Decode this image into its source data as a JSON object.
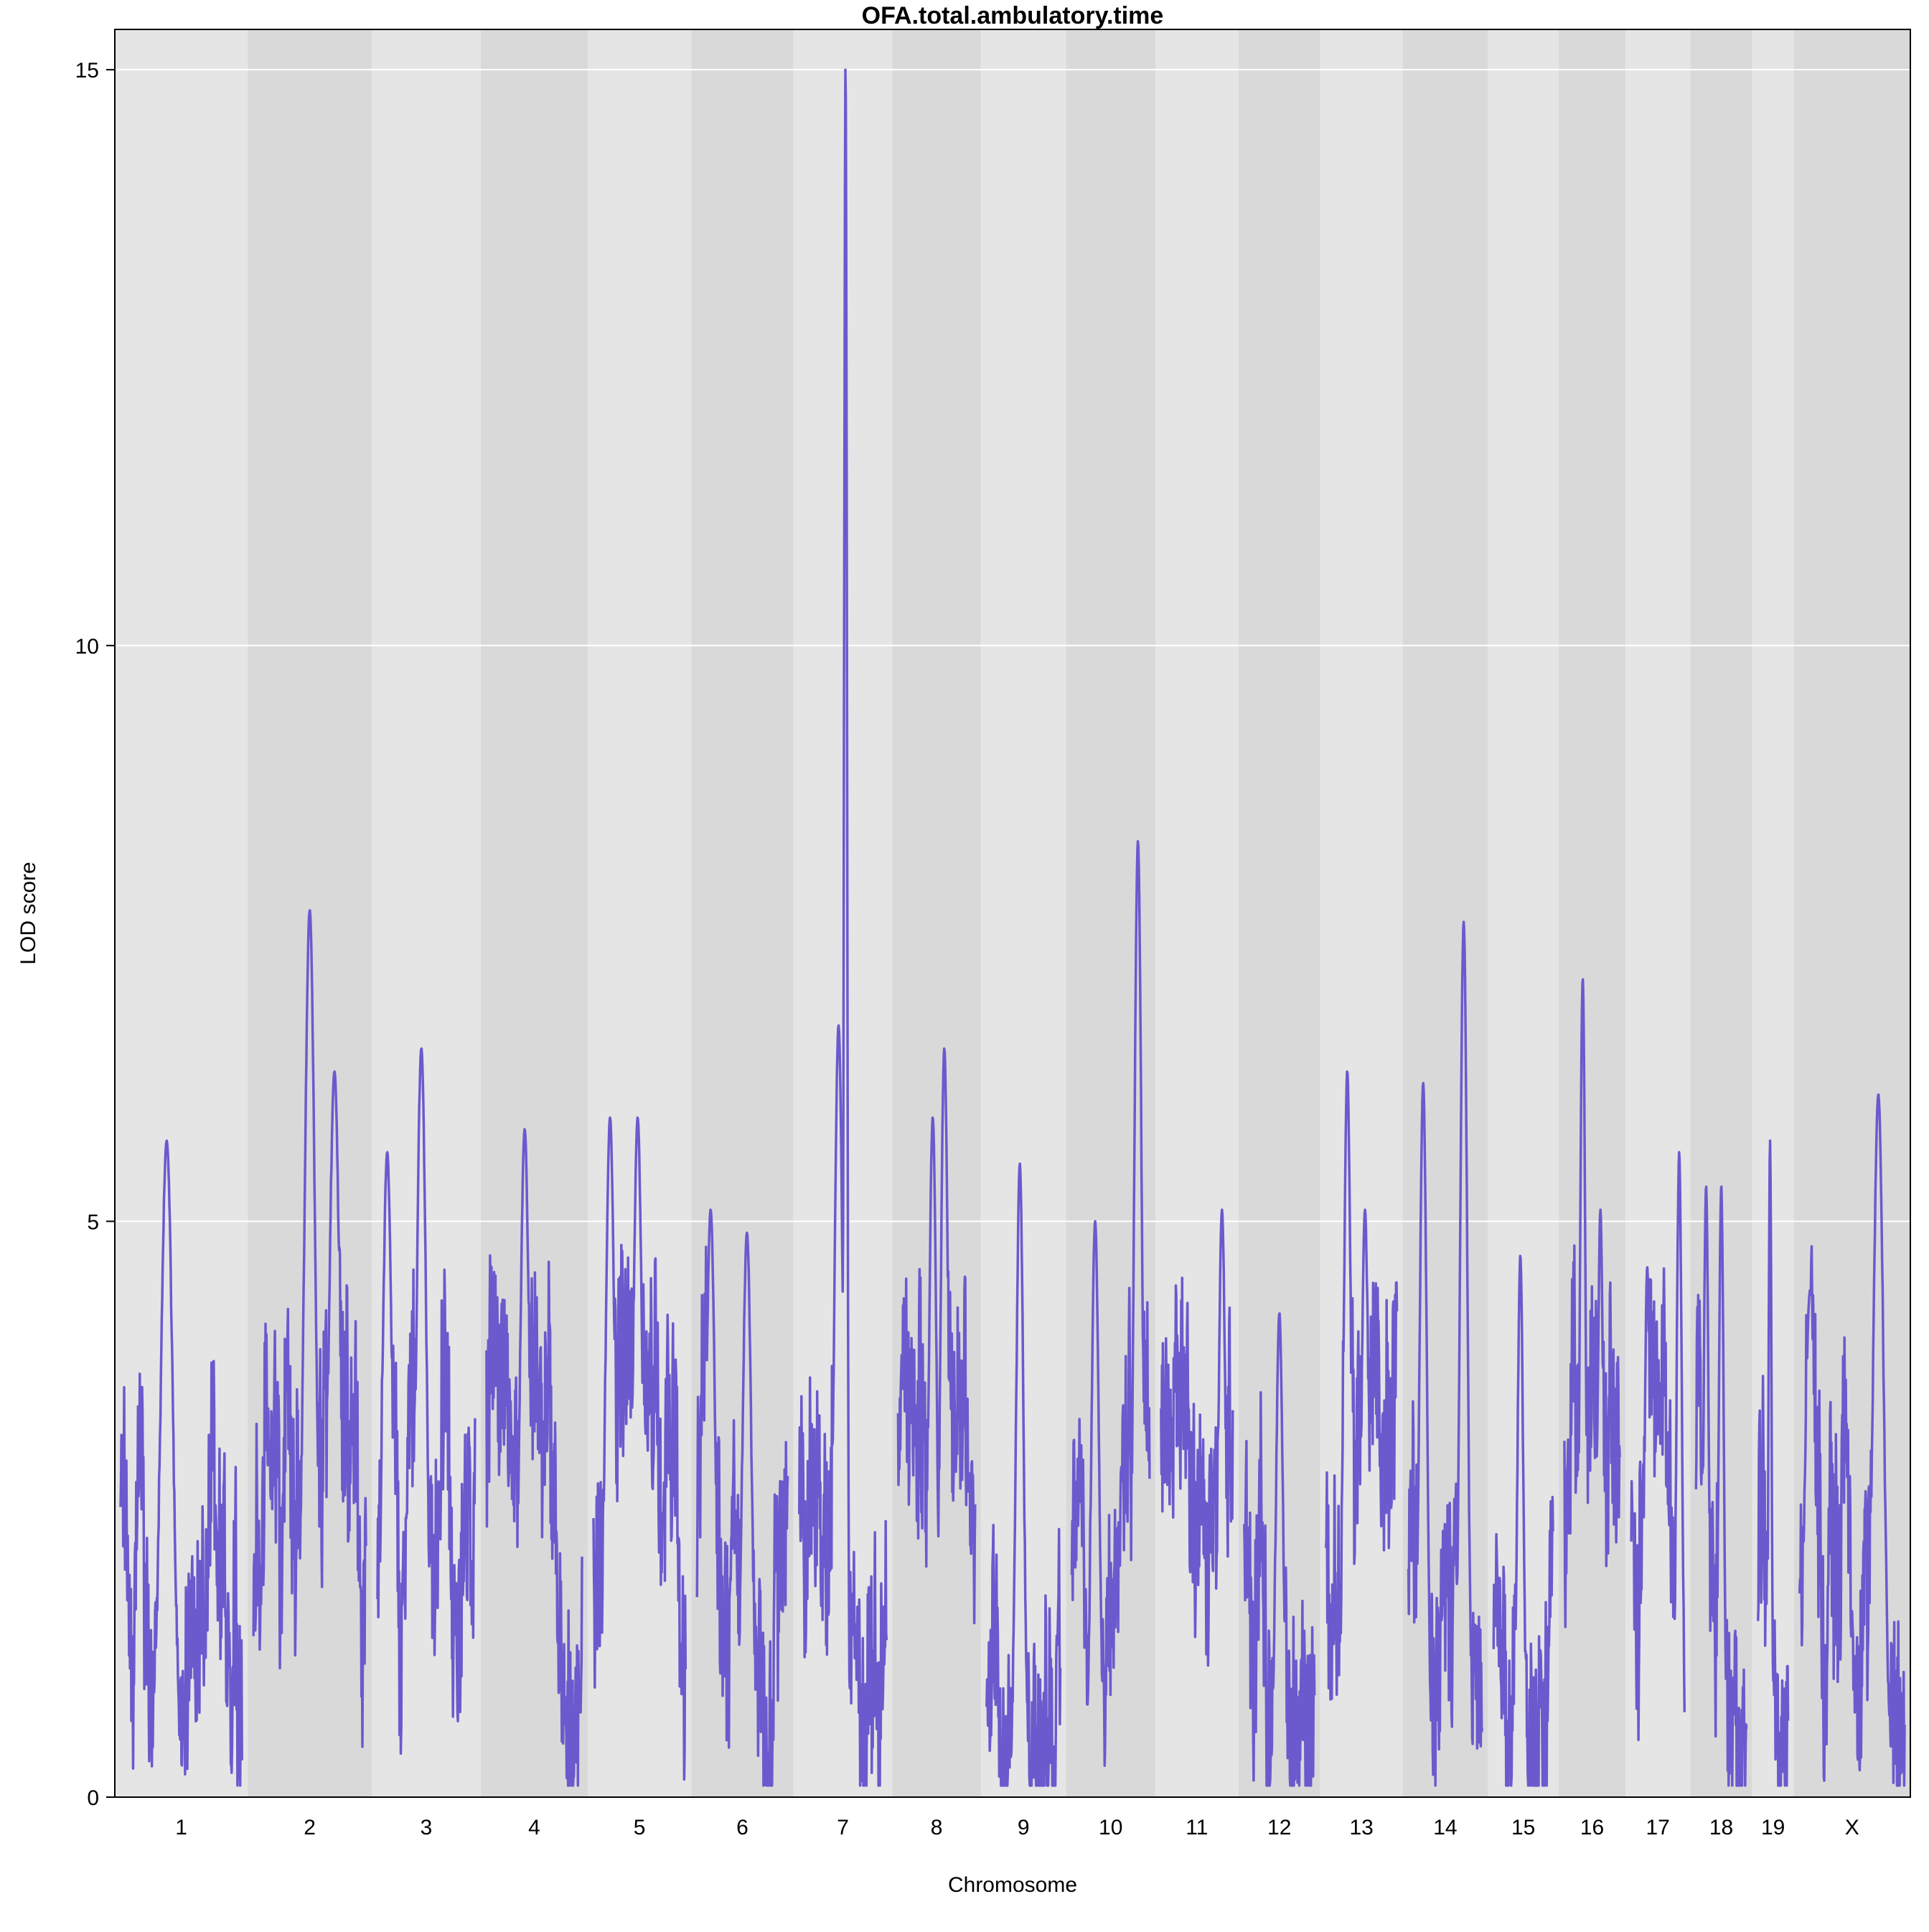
{
  "chart_data": {
    "type": "line",
    "title": "OFA.total.ambulatory.time",
    "xlabel": "Chromosome",
    "ylabel": "LOD score",
    "ylim": [
      0,
      15.35
    ],
    "yticks": [
      0,
      5,
      10,
      15
    ],
    "grid": true,
    "line_color": "#6a5acd",
    "band_colors": [
      "#e5e5e5",
      "#d9d9d9"
    ],
    "categories": [
      "1",
      "2",
      "3",
      "4",
      "5",
      "6",
      "7",
      "8",
      "9",
      "10",
      "11",
      "12",
      "13",
      "14",
      "15",
      "16",
      "17",
      "18",
      "19",
      "X"
    ],
    "chromosome_lengths": [
      195,
      182,
      160,
      157,
      152,
      150,
      145,
      130,
      125,
      131,
      122,
      120,
      121,
      125,
      104,
      98,
      95,
      91,
      61,
      171
    ],
    "series": [
      {
        "name": "",
        "peaks": [
          {
            "chr": "1",
            "pos": 0.38,
            "lod": 5.7
          },
          {
            "chr": "2",
            "pos": 0.5,
            "lod": 7.7
          },
          {
            "chr": "2",
            "pos": 0.72,
            "lod": 6.3
          },
          {
            "chr": "3",
            "pos": 0.45,
            "lod": 6.5
          },
          {
            "chr": "3",
            "pos": 0.1,
            "lod": 5.6
          },
          {
            "chr": "4",
            "pos": 0.4,
            "lod": 5.8
          },
          {
            "chr": "5",
            "pos": 0.18,
            "lod": 5.9
          },
          {
            "chr": "5",
            "pos": 0.48,
            "lod": 5.9
          },
          {
            "chr": "6",
            "pos": 0.15,
            "lod": 5.1
          },
          {
            "chr": "6",
            "pos": 0.55,
            "lod": 4.9
          },
          {
            "chr": "7",
            "pos": 0.53,
            "lod": 15.0
          },
          {
            "chr": "7",
            "pos": 0.45,
            "lod": 6.7
          },
          {
            "chr": "8",
            "pos": 0.6,
            "lod": 6.5
          },
          {
            "chr": "8",
            "pos": 0.45,
            "lod": 5.9
          },
          {
            "chr": "9",
            "pos": 0.45,
            "lod": 5.5
          },
          {
            "chr": "10",
            "pos": 0.85,
            "lod": 8.3
          },
          {
            "chr": "10",
            "pos": 0.3,
            "lod": 5.0
          },
          {
            "chr": "11",
            "pos": 0.85,
            "lod": 5.1
          },
          {
            "chr": "12",
            "pos": 0.5,
            "lod": 4.2
          },
          {
            "chr": "13",
            "pos": 0.3,
            "lod": 6.3
          },
          {
            "chr": "13",
            "pos": 0.55,
            "lod": 5.1
          },
          {
            "chr": "14",
            "pos": 0.2,
            "lod": 6.2
          },
          {
            "chr": "14",
            "pos": 0.75,
            "lod": 7.6
          },
          {
            "chr": "15",
            "pos": 0.45,
            "lod": 4.7
          },
          {
            "chr": "16",
            "pos": 0.33,
            "lod": 7.1
          },
          {
            "chr": "16",
            "pos": 0.65,
            "lod": 5.1
          },
          {
            "chr": "17",
            "pos": 0.3,
            "lod": 4.6
          },
          {
            "chr": "17",
            "pos": 0.9,
            "lod": 5.6
          },
          {
            "chr": "18",
            "pos": 0.2,
            "lod": 5.3
          },
          {
            "chr": "18",
            "pos": 0.5,
            "lod": 5.3
          },
          {
            "chr": "19",
            "pos": 0.4,
            "lod": 5.7
          },
          {
            "chr": "X",
            "pos": 0.75,
            "lod": 6.1
          },
          {
            "chr": "X",
            "pos": 0.1,
            "lod": 4.4
          }
        ]
      }
    ]
  }
}
